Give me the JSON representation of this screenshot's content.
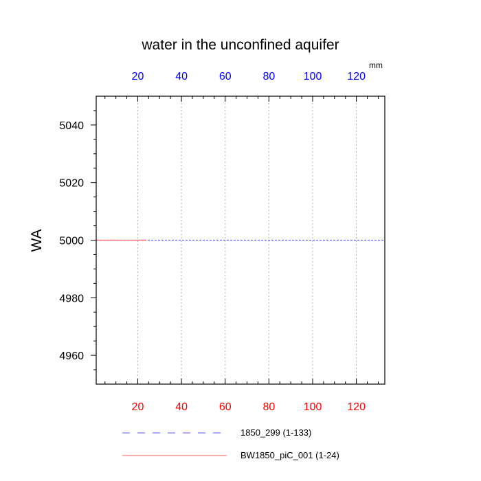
{
  "chart_data": {
    "type": "line",
    "title": "water in the unconfined aquifer",
    "ylabel": "WA",
    "x_top_units": "mm",
    "xlim": [
      1,
      133
    ],
    "ylim": [
      4950,
      5050
    ],
    "x_ticks": [
      20,
      40,
      60,
      80,
      100,
      120
    ],
    "x_tick_labels": [
      "20",
      "40",
      "60",
      "80",
      "100",
      "120"
    ],
    "y_ticks": [
      4960,
      4980,
      5000,
      5020,
      5040
    ],
    "y_tick_labels": [
      "4960",
      "4980",
      "5000",
      "5020",
      "5040"
    ],
    "grid": "vertical dotted",
    "bottom_axis_color": "#ff0000",
    "top_axis_color": "#0000ff",
    "legend_position": "bottom",
    "series": [
      {
        "name": "1850_299 (1-133)",
        "color": "#5a5aff",
        "dash": "dashed",
        "x": [
          1,
          133
        ],
        "y": [
          5000,
          5000
        ]
      },
      {
        "name": "BW1850_piC_001 (1-24)",
        "color": "#ff5a5a",
        "dash": "solid",
        "x": [
          1,
          24
        ],
        "y": [
          5000,
          5000
        ]
      }
    ]
  }
}
